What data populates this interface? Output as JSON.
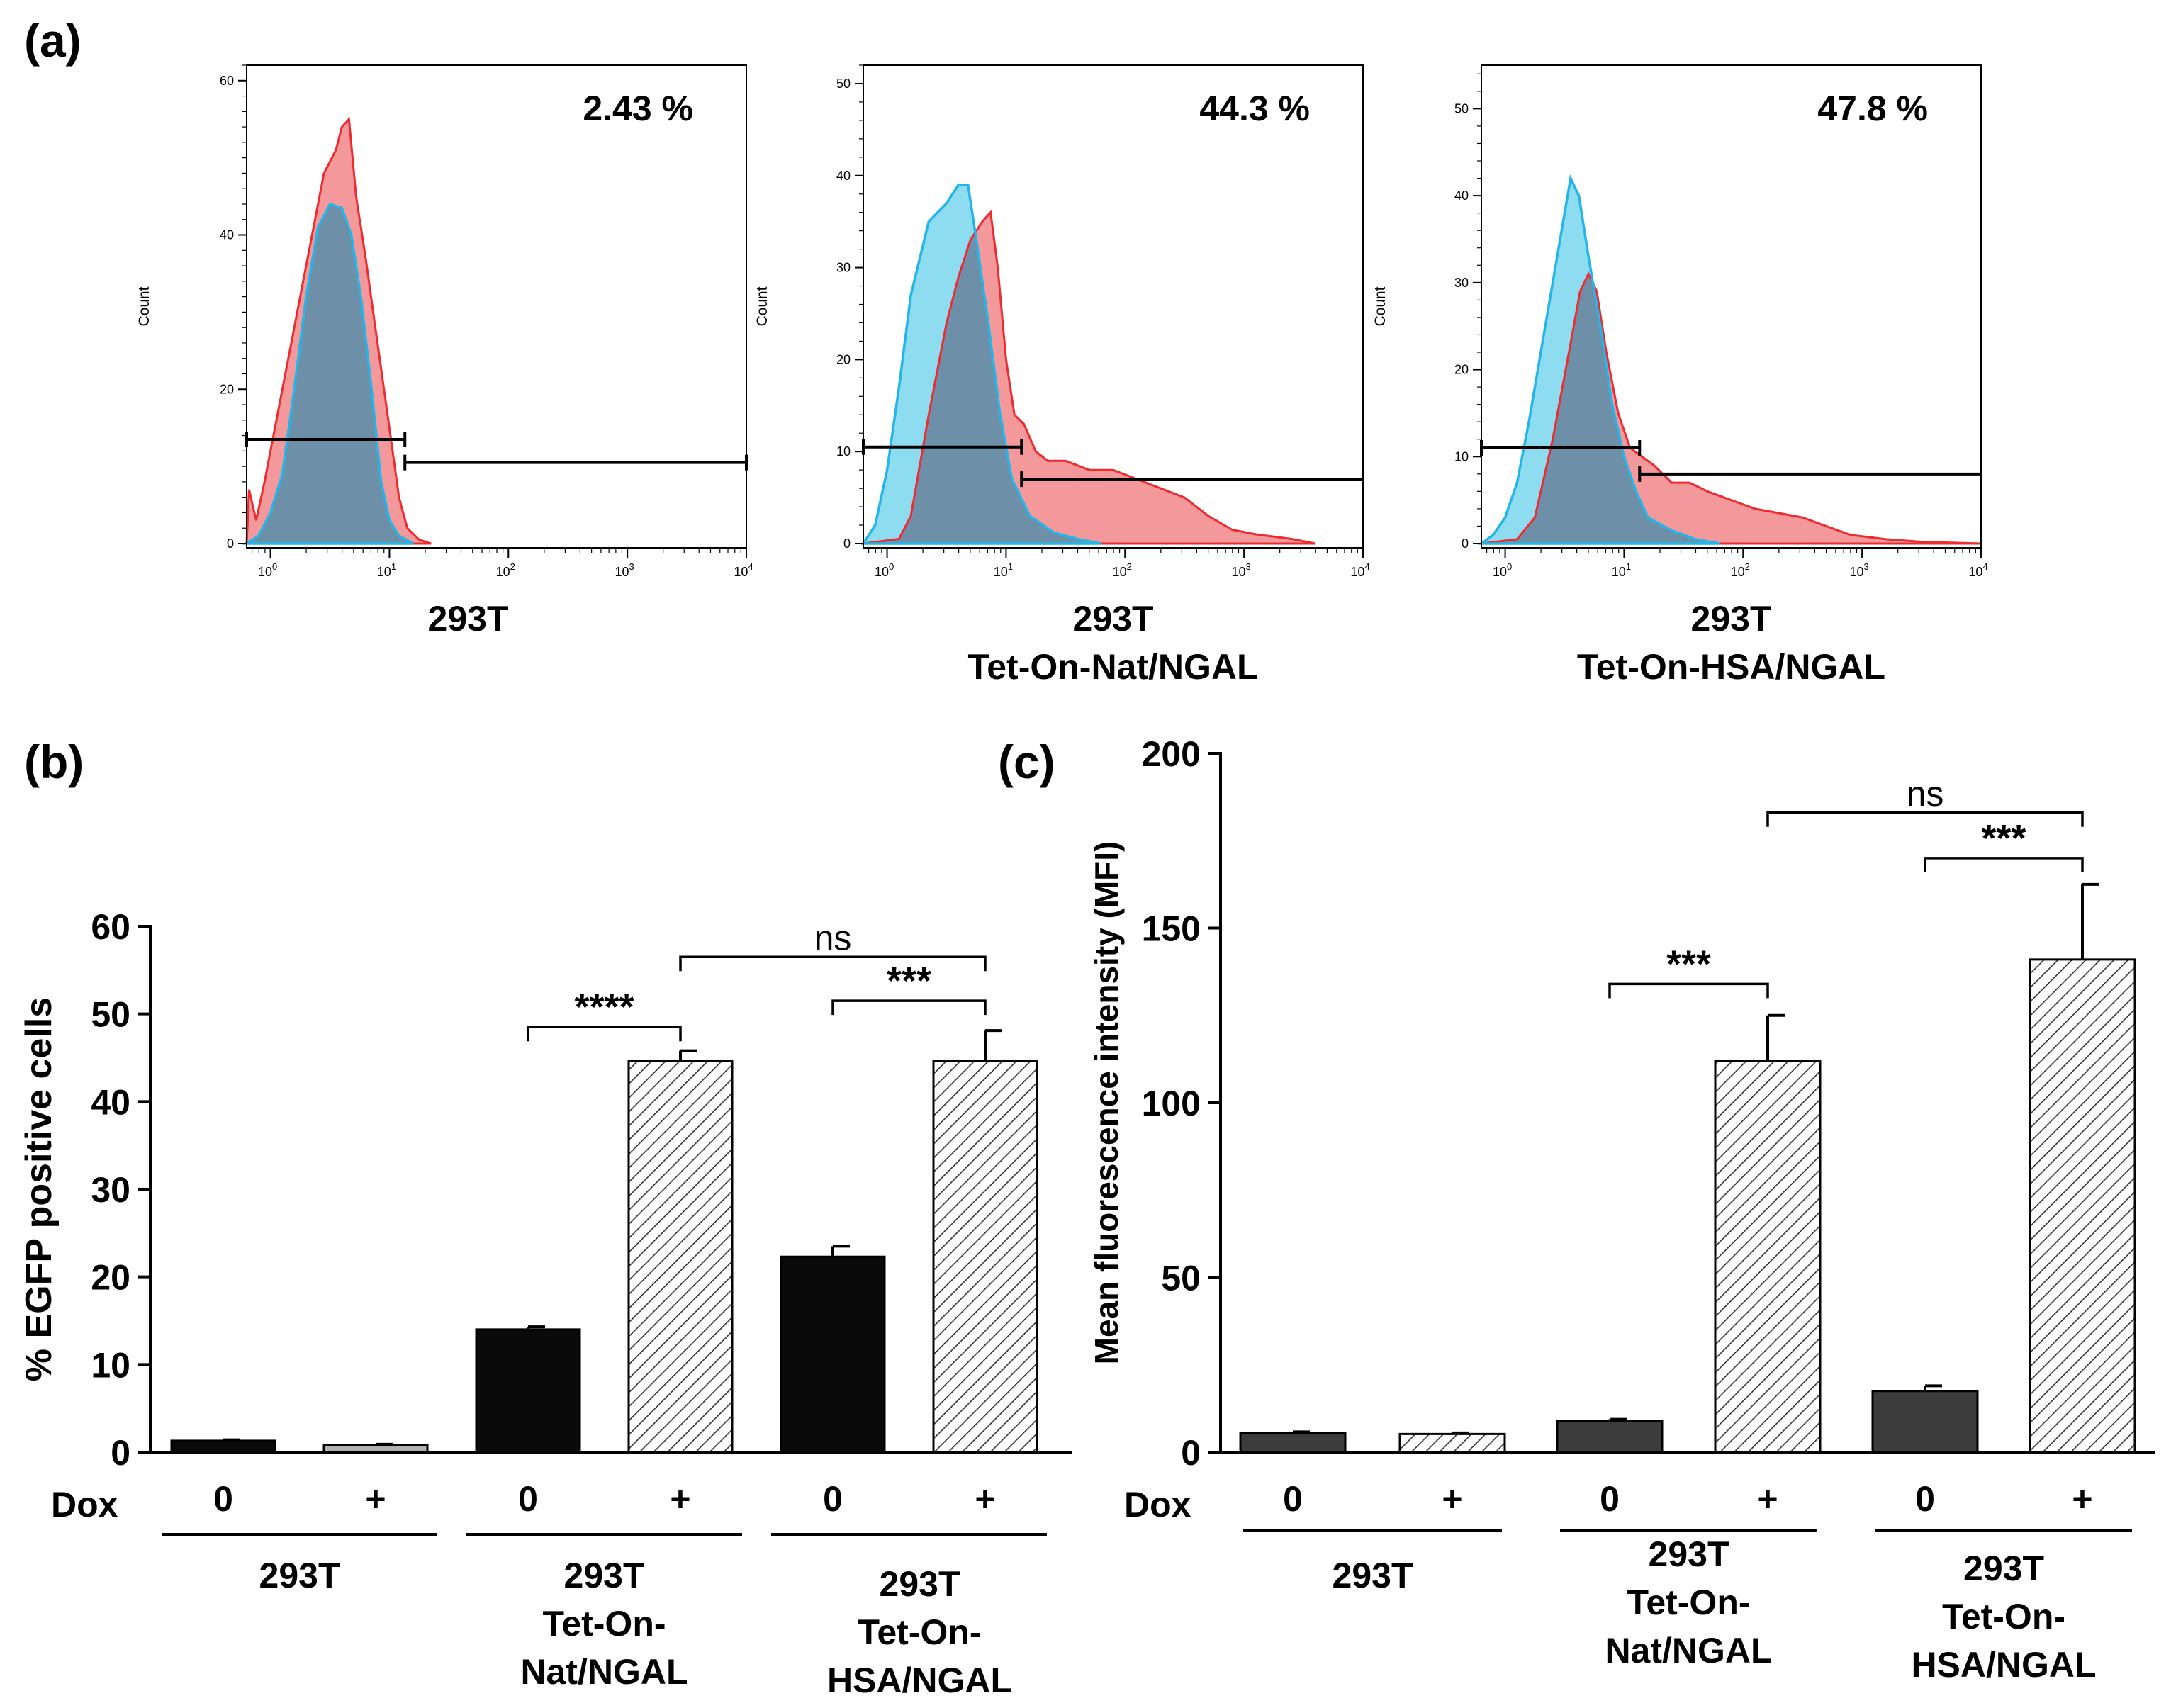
{
  "colors": {
    "red_fill": "#f4999b",
    "red_line": "#ee2b2f",
    "blue_fill": "#8ddcf0",
    "blue_line": "#24b6e8",
    "overlap_fill": "#6e8fa8",
    "black_bar": "#0a0a0a",
    "dark_gray_bar": "#3c3c3c",
    "light_gray_bar": "#b0b0b0"
  },
  "panel_a": {
    "letter": "(a)",
    "histograms": [
      {
        "title_lines": [
          "293T"
        ],
        "percent": "2.43 %",
        "ylabel": "Count",
        "ymax": 62,
        "yticks": [
          0,
          20,
          40,
          60
        ],
        "gate_low": [
          0.7,
          1.1,
          13.5
        ],
        "gate_high": [
          1.1,
          10000,
          10.5
        ],
        "red": [
          [
            -0.2,
            0
          ],
          [
            -0.18,
            7
          ],
          [
            -0.12,
            3
          ],
          [
            -0.05,
            8
          ],
          [
            0.1,
            20
          ],
          [
            0.3,
            36
          ],
          [
            0.45,
            48
          ],
          [
            0.55,
            51
          ],
          [
            0.6,
            54
          ],
          [
            0.66,
            55
          ],
          [
            0.72,
            45
          ],
          [
            0.8,
            37
          ],
          [
            0.9,
            26
          ],
          [
            1.0,
            15
          ],
          [
            1.08,
            6
          ],
          [
            1.15,
            2
          ],
          [
            1.25,
            0.5
          ],
          [
            1.35,
            0
          ]
        ],
        "blue": [
          [
            -0.2,
            0
          ],
          [
            -0.1,
            1
          ],
          [
            0.0,
            4
          ],
          [
            0.1,
            9
          ],
          [
            0.2,
            20
          ],
          [
            0.3,
            32
          ],
          [
            0.4,
            41
          ],
          [
            0.5,
            44
          ],
          [
            0.6,
            43.5
          ],
          [
            0.68,
            40
          ],
          [
            0.76,
            32
          ],
          [
            0.85,
            20
          ],
          [
            0.93,
            8
          ],
          [
            1.0,
            3
          ],
          [
            1.08,
            1
          ],
          [
            1.2,
            0
          ]
        ]
      },
      {
        "title_lines": [
          "293T",
          "Tet-On-Nat/NGAL"
        ],
        "percent": "44.3 %",
        "ylabel": "Count",
        "ymax": 52,
        "yticks": [
          0,
          10,
          20,
          30,
          40,
          50
        ],
        "gate_low": [
          -0.2,
          1.1,
          10.5
        ],
        "gate_high": [
          1.1,
          4.0,
          7.0
        ],
        "red": [
          [
            -0.2,
            0
          ],
          [
            0.1,
            0.5
          ],
          [
            0.2,
            3
          ],
          [
            0.35,
            14
          ],
          [
            0.5,
            24
          ],
          [
            0.6,
            29
          ],
          [
            0.7,
            33
          ],
          [
            0.8,
            35
          ],
          [
            0.87,
            36
          ],
          [
            0.93,
            30
          ],
          [
            1.0,
            20
          ],
          [
            1.07,
            14
          ],
          [
            1.15,
            13
          ],
          [
            1.25,
            10
          ],
          [
            1.35,
            9
          ],
          [
            1.5,
            9
          ],
          [
            1.7,
            8
          ],
          [
            1.9,
            8
          ],
          [
            2.1,
            7
          ],
          [
            2.3,
            6
          ],
          [
            2.5,
            5
          ],
          [
            2.7,
            3
          ],
          [
            2.9,
            1.5
          ],
          [
            3.1,
            1
          ],
          [
            3.4,
            0.5
          ],
          [
            3.6,
            0
          ]
        ],
        "blue": [
          [
            -0.2,
            0
          ],
          [
            -0.1,
            2
          ],
          [
            0.0,
            8
          ],
          [
            0.1,
            17
          ],
          [
            0.2,
            27
          ],
          [
            0.35,
            35
          ],
          [
            0.5,
            37
          ],
          [
            0.6,
            39
          ],
          [
            0.68,
            39
          ],
          [
            0.75,
            33
          ],
          [
            0.85,
            24
          ],
          [
            0.95,
            14
          ],
          [
            1.05,
            7
          ],
          [
            1.2,
            3
          ],
          [
            1.4,
            1.2
          ],
          [
            1.6,
            0.5
          ],
          [
            1.8,
            0
          ]
        ]
      },
      {
        "title_lines": [
          "293T",
          "Tet-On-HSA/NGAL"
        ],
        "percent": "47.8 %",
        "ylabel": "Count",
        "ymax": 55,
        "yticks": [
          0,
          10,
          20,
          30,
          40,
          50
        ],
        "gate_low": [
          -0.2,
          1.1,
          11.0
        ],
        "gate_high": [
          1.1,
          4.0,
          8.0
        ],
        "red": [
          [
            -0.2,
            0
          ],
          [
            0.1,
            0.5
          ],
          [
            0.25,
            3
          ],
          [
            0.4,
            12
          ],
          [
            0.55,
            23
          ],
          [
            0.63,
            29
          ],
          [
            0.7,
            31
          ],
          [
            0.77,
            29
          ],
          [
            0.85,
            22
          ],
          [
            0.95,
            15
          ],
          [
            1.05,
            11
          ],
          [
            1.15,
            10
          ],
          [
            1.25,
            9
          ],
          [
            1.4,
            7
          ],
          [
            1.55,
            7
          ],
          [
            1.7,
            6
          ],
          [
            1.9,
            5
          ],
          [
            2.1,
            4
          ],
          [
            2.3,
            3.5
          ],
          [
            2.5,
            3
          ],
          [
            2.7,
            2
          ],
          [
            2.9,
            1
          ],
          [
            3.2,
            0.5
          ],
          [
            3.5,
            0.2
          ],
          [
            4.0,
            0
          ]
        ],
        "blue": [
          [
            -0.2,
            0
          ],
          [
            -0.1,
            1
          ],
          [
            0.0,
            3
          ],
          [
            0.1,
            7
          ],
          [
            0.2,
            14
          ],
          [
            0.3,
            22
          ],
          [
            0.4,
            30
          ],
          [
            0.5,
            38
          ],
          [
            0.55,
            42
          ],
          [
            0.62,
            40
          ],
          [
            0.7,
            33
          ],
          [
            0.8,
            25
          ],
          [
            0.9,
            16
          ],
          [
            1.0,
            10
          ],
          [
            1.1,
            6
          ],
          [
            1.2,
            3
          ],
          [
            1.4,
            1.5
          ],
          [
            1.6,
            0.5
          ],
          [
            1.8,
            0
          ]
        ]
      }
    ]
  },
  "panel_b": {
    "letter": "(b)",
    "dox_label": "Dox",
    "groups": [
      {
        "lines": [
          "293T"
        ]
      },
      {
        "lines": [
          "293T",
          "Tet-On-",
          "Nat/NGAL"
        ]
      },
      {
        "lines": [
          "293T",
          "Tet-On-",
          "HSA/NGAL"
        ]
      }
    ]
  },
  "panel_c": {
    "letter": "(c)",
    "dox_label": "Dox",
    "groups": [
      {
        "lines": [
          "293T"
        ]
      },
      {
        "lines": [
          "293T",
          "Tet-On-",
          "Nat/NGAL"
        ]
      },
      {
        "lines": [
          "293T",
          "Tet-On-",
          "HSA/NGAL"
        ]
      }
    ]
  },
  "chart_data": [
    {
      "type": "area",
      "panel": "a1",
      "title": "293T",
      "ylabel": "Count",
      "x_scale": "log",
      "xlim": [
        0.63,
        10000
      ],
      "xticks": [
        "10^0",
        "10^1",
        "10^2",
        "10^3",
        "10^4"
      ],
      "ylim": [
        0,
        62
      ],
      "gated_percent": 2.43,
      "series": [
        {
          "name": "red histogram"
        },
        {
          "name": "blue histogram"
        }
      ]
    },
    {
      "type": "area",
      "panel": "a2",
      "title": "293T Tet-On-Nat/NGAL",
      "ylabel": "Count",
      "x_scale": "log",
      "xlim": [
        0.63,
        10000
      ],
      "xticks": [
        "10^0",
        "10^1",
        "10^2",
        "10^3",
        "10^4"
      ],
      "ylim": [
        0,
        52
      ],
      "gated_percent": 44.3,
      "series": [
        {
          "name": "red histogram"
        },
        {
          "name": "blue histogram"
        }
      ]
    },
    {
      "type": "area",
      "panel": "a3",
      "title": "293T Tet-On-HSA/NGAL",
      "ylabel": "Count",
      "x_scale": "log",
      "xlim": [
        0.63,
        10000
      ],
      "xticks": [
        "10^0",
        "10^1",
        "10^2",
        "10^3",
        "10^4"
      ],
      "ylim": [
        0,
        55
      ],
      "gated_percent": 47.8,
      "series": [
        {
          "name": "red histogram"
        },
        {
          "name": "blue histogram"
        }
      ]
    },
    {
      "type": "bar",
      "panel": "b",
      "ylabel": "% EGFP positive cells",
      "ylim": [
        0,
        60
      ],
      "yticks": [
        0,
        10,
        20,
        30,
        40,
        50,
        60
      ],
      "categories": [
        "0",
        "+",
        "0",
        "+",
        "0",
        "+"
      ],
      "values": [
        1.3,
        0.8,
        14.0,
        44.6,
        22.3,
        44.6
      ],
      "errors": [
        0.1,
        0.1,
        0.3,
        1.2,
        1.2,
        3.5
      ],
      "styles": [
        "black",
        "gray",
        "black",
        "hatch",
        "black",
        "hatch"
      ],
      "significance": [
        {
          "from": 2,
          "to": 3,
          "label": "****",
          "y": 48.5
        },
        {
          "from": 4,
          "to": 5,
          "label": "***",
          "y": 51.5
        },
        {
          "from": 3,
          "to": 5,
          "label": "ns",
          "y": 56.5
        }
      ]
    },
    {
      "type": "bar",
      "panel": "c",
      "ylabel": "Mean fluorescence intensity (MFI)",
      "ylim": [
        0,
        200
      ],
      "yticks": [
        0,
        50,
        100,
        150,
        200
      ],
      "categories": [
        "0",
        "+",
        "0",
        "+",
        "0",
        "+"
      ],
      "values": [
        5.5,
        5.2,
        9.0,
        112.0,
        17.5,
        141.0
      ],
      "errors": [
        0.3,
        0.3,
        0.4,
        13.0,
        1.5,
        21.5
      ],
      "styles": [
        "dark",
        "hatch",
        "dark",
        "hatch",
        "dark",
        "hatch"
      ],
      "significance": [
        {
          "from": 2,
          "to": 3,
          "label": "***",
          "y": 134
        },
        {
          "from": 4,
          "to": 5,
          "label": "***",
          "y": 170
        },
        {
          "from": 3,
          "to": 5,
          "label": "ns",
          "y": 183
        }
      ]
    }
  ]
}
